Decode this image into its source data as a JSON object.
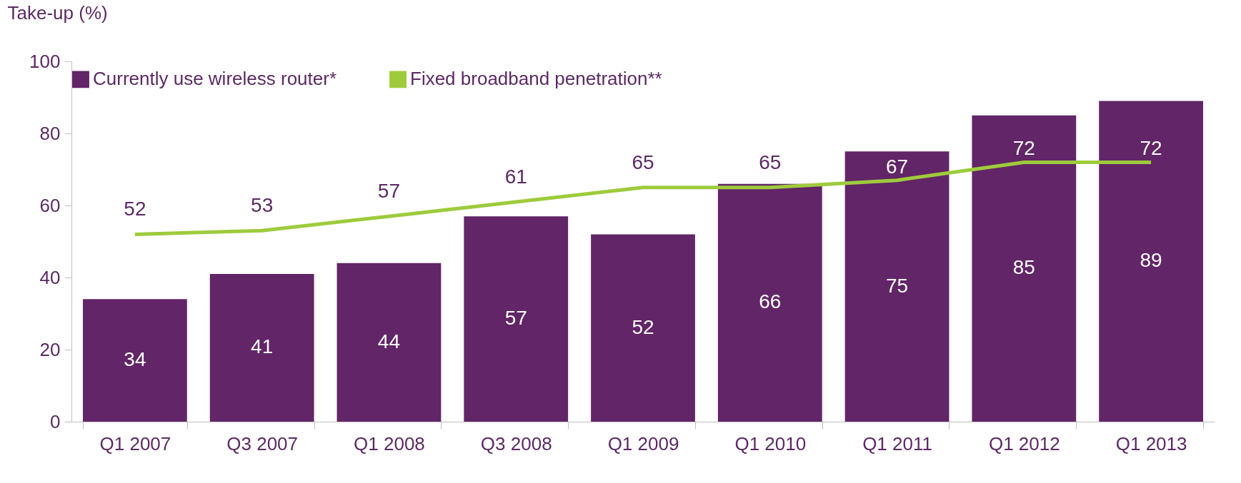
{
  "chart_data": {
    "type": "bar",
    "ylabel": "Take-up (%)",
    "categories": [
      "Q1 2007",
      "Q3 2007",
      "Q1 2008",
      "Q3 2008",
      "Q1 2009",
      "Q1 2010",
      "Q1 2011",
      "Q1 2012",
      "Q1 2013"
    ],
    "series": [
      {
        "name": "Currently use wireless router*",
        "color": "#622567",
        "values": [
          34,
          41,
          44,
          57,
          52,
          66,
          75,
          85,
          89
        ]
      },
      {
        "name": "Fixed broadband penetration**",
        "type": "line",
        "color": "#9ecb3c",
        "values": [
          52,
          53,
          57,
          61,
          65,
          65,
          67,
          72,
          72
        ]
      }
    ],
    "ylim": [
      0,
      100
    ],
    "yticks": [
      0,
      20,
      40,
      60,
      80,
      100
    ],
    "data_labels": true,
    "legend": "top",
    "grid": false
  }
}
